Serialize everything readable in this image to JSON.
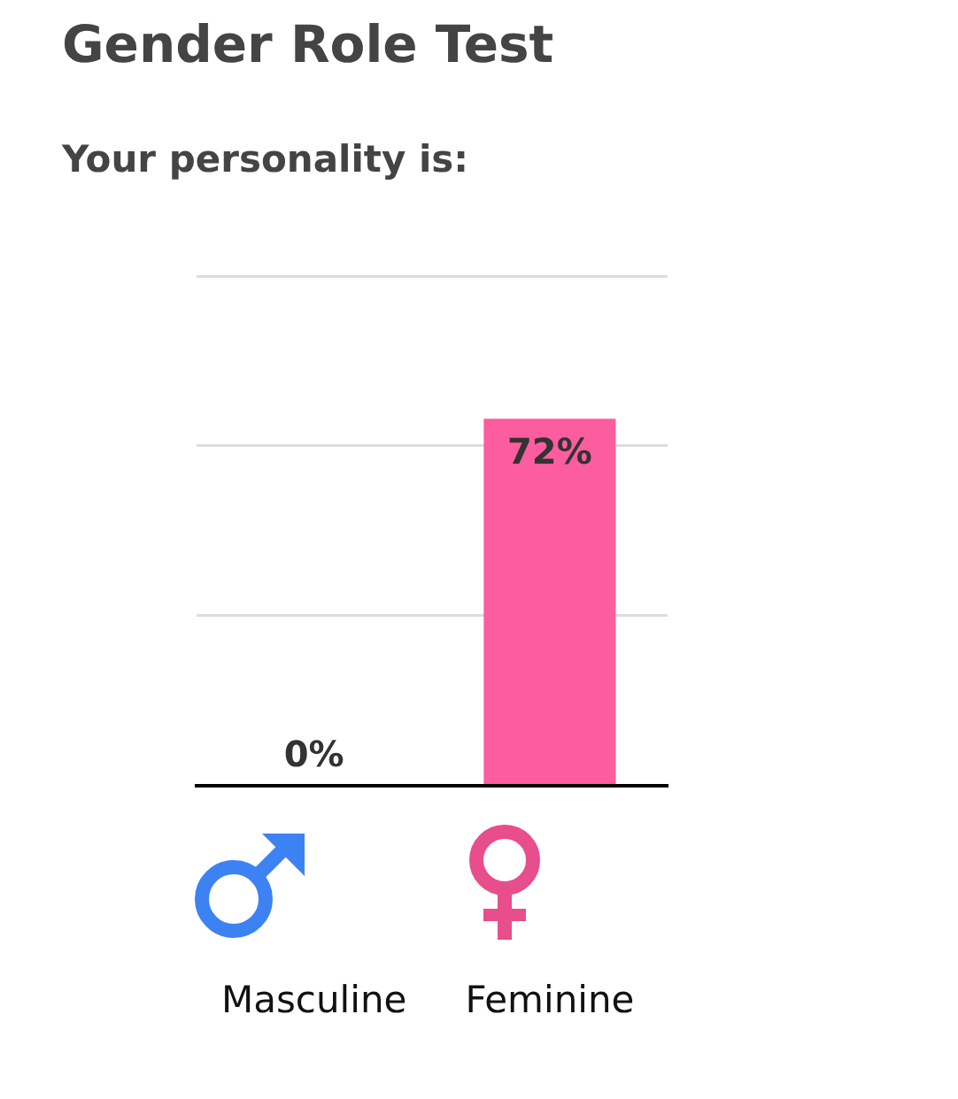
{
  "chart_data": {
    "type": "bar",
    "title": "Gender Role Test",
    "subtitle": "Your personality is:",
    "categories": [
      "Masculine",
      "Feminine"
    ],
    "values": [
      0,
      72
    ],
    "value_labels": [
      "0%",
      "72%"
    ],
    "color": "#fc5d9e",
    "ylim": [
      0,
      100
    ],
    "yticks": [
      {
        "value": 0,
        "label": null
      },
      {
        "value": 33.3,
        "label": null
      },
      {
        "value": 66.7,
        "label": null
      },
      {
        "value": 100,
        "label": null
      }
    ],
    "grid": "y",
    "tick_labels": "x"
  }
}
